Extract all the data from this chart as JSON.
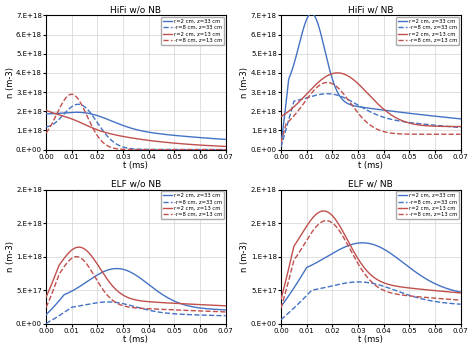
{
  "titles": [
    "HiFi w/o NB",
    "HiFi w/ NB",
    "ELF w/o NB",
    "ELF w/ NB"
  ],
  "legend_labels": [
    "r=2 cm, z=33 cm",
    "-r=8 cm, z=33 cm",
    "r=2 cm, z=13 cm",
    "-r=8 cm, z=13 cm"
  ],
  "colors": {
    "blue": "#4472C4",
    "red": "#C0504D"
  },
  "xlabel": "t (ms)",
  "ylabel": "n (m-3)",
  "xlim": [
    0.0,
    0.07
  ],
  "hifi_ylim": [
    0,
    7e+18
  ],
  "elf_ylim": [
    0,
    2e+18
  ],
  "hifi_yticks": [
    0,
    1e+18,
    2e+18,
    3e+18,
    4e+18,
    5e+18,
    6e+18,
    7e+18
  ],
  "elf_yticks": [
    0,
    5e+17,
    1e+18,
    1.5e+18,
    2e+18
  ],
  "xticks": [
    0.0,
    0.01,
    0.02,
    0.03,
    0.04,
    0.05,
    0.06,
    0.07
  ],
  "background_color": "#ffffff",
  "grid_color": "#d3d3d3"
}
